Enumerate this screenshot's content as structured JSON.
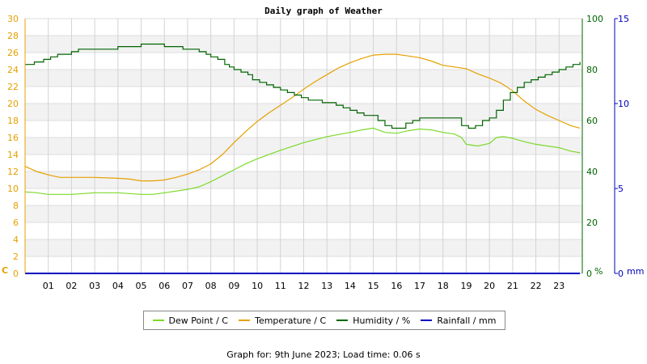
{
  "footer_text": "Graph for: 9th June 2023; Load time: 0.06 s",
  "chart_data": {
    "type": "line",
    "title": "Daily graph of Weather",
    "x_ticks": [
      "01",
      "02",
      "03",
      "04",
      "05",
      "06",
      "07",
      "08",
      "09",
      "10",
      "11",
      "12",
      "13",
      "14",
      "15",
      "16",
      "17",
      "18",
      "19",
      "20",
      "21",
      "22",
      "23"
    ],
    "x_range_hours": [
      0,
      24
    ],
    "grid": true,
    "legend_placement": "bottom",
    "axes": {
      "left": {
        "unit": "C",
        "range": [
          0,
          30
        ],
        "ticks": [
          0,
          2,
          4,
          6,
          8,
          10,
          12,
          14,
          16,
          18,
          20,
          22,
          24,
          26,
          28,
          30
        ],
        "color": "#e5a000"
      },
      "humidity": {
        "unit": "%",
        "range": [
          0,
          100
        ],
        "ticks": [
          0,
          20,
          40,
          60,
          80,
          100
        ],
        "color": "#006400"
      },
      "rain": {
        "unit": "mm",
        "range": [
          0,
          15
        ],
        "ticks": [
          0,
          5,
          10,
          15
        ],
        "color": "#0000c0"
      }
    },
    "series": [
      {
        "name": "Dew Point / C",
        "axis": "left",
        "color": "#7cd92a",
        "x": [
          0,
          0.5,
          1,
          1.5,
          2,
          3,
          4,
          5,
          5.5,
          6,
          7,
          7.5,
          8,
          8.5,
          9,
          9.5,
          10,
          11,
          12,
          13,
          14,
          14.5,
          15,
          15.5,
          16,
          16.5,
          17,
          17.5,
          18,
          18.5,
          18.8,
          19,
          19.5,
          20,
          20.3,
          20.6,
          21,
          21.5,
          22,
          22.5,
          23,
          23.5,
          23.9
        ],
        "y": [
          9.6,
          9.5,
          9.3,
          9.3,
          9.3,
          9.5,
          9.5,
          9.3,
          9.3,
          9.5,
          9.9,
          10.2,
          10.8,
          11.5,
          12.2,
          12.9,
          13.5,
          14.5,
          15.4,
          16.1,
          16.6,
          16.9,
          17.1,
          16.6,
          16.5,
          16.8,
          17.0,
          16.9,
          16.6,
          16.4,
          16.0,
          15.2,
          15.0,
          15.3,
          16.0,
          16.1,
          15.9,
          15.5,
          15.2,
          15.0,
          14.8,
          14.4,
          14.2
        ]
      },
      {
        "name": "Temperature / C",
        "axis": "left",
        "color": "#e5a000",
        "x": [
          0,
          0.5,
          1,
          1.5,
          2,
          3,
          4,
          4.5,
          5,
          5.5,
          6,
          6.5,
          7,
          7.5,
          8,
          8.5,
          9,
          9.5,
          10,
          10.5,
          11,
          11.5,
          12,
          12.5,
          13,
          13.5,
          14,
          14.5,
          15,
          15.5,
          16,
          16.5,
          17,
          17.5,
          18,
          18.5,
          19,
          19.5,
          20,
          20.5,
          21,
          21.5,
          22,
          22.5,
          23,
          23.5,
          23.9
        ],
        "y": [
          12.6,
          12.0,
          11.6,
          11.3,
          11.3,
          11.3,
          11.2,
          11.1,
          10.9,
          10.9,
          11.0,
          11.3,
          11.7,
          12.2,
          12.9,
          14.0,
          15.4,
          16.7,
          17.9,
          18.9,
          19.8,
          20.7,
          21.7,
          22.6,
          23.4,
          24.2,
          24.8,
          25.3,
          25.7,
          25.8,
          25.8,
          25.6,
          25.4,
          25.0,
          24.5,
          24.3,
          24.1,
          23.5,
          23.0,
          22.4,
          21.5,
          20.3,
          19.3,
          18.6,
          18.0,
          17.4,
          17.1
        ]
      },
      {
        "name": "Humidity / %",
        "axis": "humidity",
        "color": "#006400",
        "step": true,
        "x": [
          0,
          0.4,
          0.8,
          1.1,
          1.4,
          1.8,
          2.0,
          2.3,
          3.0,
          3.5,
          4.0,
          4.5,
          5.0,
          5.3,
          5.5,
          6.0,
          6.5,
          6.8,
          7.0,
          7.5,
          7.8,
          8.0,
          8.3,
          8.6,
          8.8,
          9.0,
          9.3,
          9.6,
          9.8,
          10.1,
          10.4,
          10.7,
          11.0,
          11.3,
          11.6,
          11.9,
          12.2,
          12.5,
          12.8,
          13.1,
          13.4,
          13.7,
          14.0,
          14.3,
          14.6,
          14.9,
          15.2,
          15.5,
          15.8,
          16.1,
          16.4,
          16.7,
          17.0,
          17.3,
          17.6,
          17.9,
          18.2,
          18.5,
          18.8,
          19.1,
          19.4,
          19.7,
          20.0,
          20.3,
          20.6,
          20.9,
          21.2,
          21.5,
          21.8,
          22.1,
          22.4,
          22.7,
          23.0,
          23.3,
          23.6,
          23.9
        ],
        "y": [
          82,
          83,
          84,
          85,
          86,
          86,
          87,
          88,
          88,
          88,
          89,
          89,
          90,
          90,
          90,
          89,
          89,
          88,
          88,
          87,
          86,
          85,
          84,
          82,
          81,
          80,
          79,
          78,
          76,
          75,
          74,
          73,
          72,
          71,
          70,
          69,
          68,
          68,
          67,
          67,
          66,
          65,
          64,
          63,
          62,
          62,
          60,
          58,
          57,
          57,
          59,
          60,
          61,
          61,
          61,
          61,
          61,
          61,
          58,
          57,
          58,
          60,
          61,
          64,
          68,
          71,
          73,
          75,
          76,
          77,
          78,
          79,
          80,
          81,
          82,
          83
        ]
      },
      {
        "name": "Rainfall / mm",
        "axis": "rain",
        "color": "#0000c0",
        "x": [
          0,
          23.9
        ],
        "y": [
          0,
          0
        ]
      }
    ]
  }
}
